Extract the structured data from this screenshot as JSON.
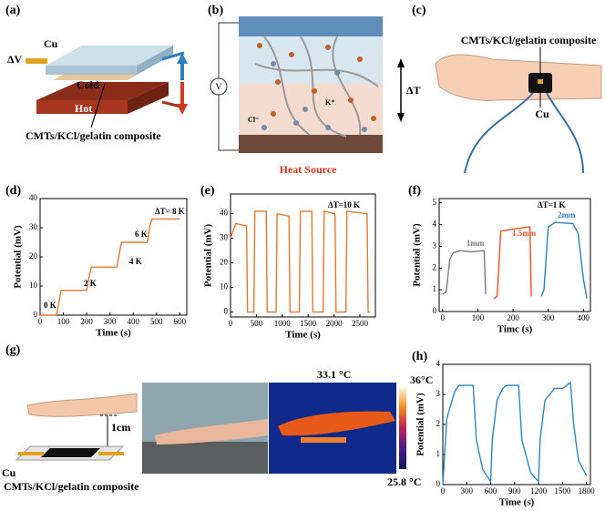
{
  "panels": {
    "labels": [
      "(a)",
      "(b)",
      "(c)",
      "(d)",
      "(e)",
      "(f)",
      "(g)",
      "(h)"
    ],
    "a": {
      "cu": "Cu",
      "dv": "ΔV",
      "cold": "Cold",
      "hot": "Hot",
      "composite": "CMTs/KCl/gelatin composite"
    },
    "b": {
      "heat_source": "Heat Source",
      "dt": "ΔT",
      "k": "K⁺",
      "cl": "Cl⁻"
    },
    "c": {
      "composite": "CMTs/KCl/gelatin composite",
      "cu": "Cu"
    },
    "g": {
      "distance": "1cm",
      "cu": "Cu",
      "composite": "CMTs/KCl/gelatin composite",
      "temp_hand": "33.1 °C",
      "temp_max": "36°C",
      "temp_min": "25.8 °C"
    }
  },
  "chart_data": [
    {
      "type": "line",
      "xlabel": "Time (s)",
      "ylabel": "Potential (mV)",
      "xlim": [
        0,
        630
      ],
      "xticks": [
        0,
        100,
        200,
        300,
        400,
        500,
        600
      ],
      "ylim": [
        0,
        40
      ],
      "yticks": [
        0,
        10,
        20,
        30,
        40
      ],
      "annotations": [
        "0 K",
        "2 K",
        "4 K",
        "6 K",
        "ΔT= 8 K"
      ],
      "series": [
        {
          "color": "#e8772e",
          "x": [
            0,
            70,
            80,
            90,
            200,
            210,
            220,
            330,
            340,
            350,
            460,
            470,
            480,
            600
          ],
          "values": [
            0,
            0,
            4,
            8.5,
            8.5,
            13,
            16.5,
            16.5,
            21,
            25,
            25,
            30,
            33,
            33
          ]
        }
      ]
    },
    {
      "type": "line",
      "xlabel": "Time (s)",
      "ylabel": "Potential (mV)",
      "xlim": [
        0,
        2800
      ],
      "xticks": [
        0,
        500,
        1000,
        1500,
        2000,
        2500
      ],
      "ylim": [
        -2,
        48
      ],
      "yticks": [
        0,
        10,
        20,
        30,
        40
      ],
      "annotations": [
        "ΔT=10 K"
      ],
      "series": [
        {
          "color": "#e8772e",
          "x": [
            0,
            100,
            310,
            330,
            450,
            470,
            690,
            710,
            880,
            900,
            1130,
            1150,
            1330,
            1350,
            1570,
            1590,
            1790,
            1810,
            2020,
            2040,
            2230,
            2250,
            2640,
            2660,
            2700
          ],
          "values": [
            30,
            36,
            35,
            0,
            0,
            41,
            41,
            0,
            0,
            40,
            39,
            0,
            0,
            41,
            41,
            0,
            0,
            41,
            40,
            0,
            0,
            41,
            40,
            0,
            0
          ]
        }
      ]
    },
    {
      "type": "line",
      "xlabel": "Timc (s)",
      "ylabel": "Potential (mV)",
      "xlim": [
        -10,
        420
      ],
      "xticks": [
        0,
        100,
        200,
        300,
        400
      ],
      "ylim": [
        0,
        5.2
      ],
      "yticks": [
        0,
        1,
        2,
        3,
        4,
        5
      ],
      "annotations": [
        "ΔT=1 K"
      ],
      "series": [
        {
          "name": "1mm",
          "color": "#7a7a7a",
          "x": [
            0,
            10,
            20,
            30,
            50,
            80,
            118,
            122
          ],
          "values": [
            0.8,
            0.9,
            2.4,
            2.7,
            2.8,
            2.75,
            2.8,
            0.8
          ]
        },
        {
          "name": "1.5mm",
          "color": "#f04e23",
          "x": [
            145,
            155,
            165,
            200,
            248,
            252
          ],
          "values": [
            0.6,
            0.7,
            3.7,
            3.8,
            3.9,
            0.7
          ]
        },
        {
          "name": "2mm",
          "color": "#2f7fbf",
          "x": [
            280,
            288,
            300,
            320,
            370,
            385,
            400,
            410
          ],
          "values": [
            0.7,
            1.0,
            3.9,
            4.1,
            4.05,
            3.6,
            1.5,
            0.6
          ]
        }
      ]
    },
    {
      "type": "line",
      "xlabel": "Time (s)",
      "ylabel": "Potential (mV)",
      "xlim": [
        0,
        1850
      ],
      "xticks": [
        0,
        300,
        600,
        900,
        1200,
        1500,
        1800
      ],
      "ylim": [
        0,
        4
      ],
      "yticks": [
        0,
        1,
        2,
        3,
        4
      ],
      "series": [
        {
          "color": "#2f86c4",
          "x": [
            0,
            50,
            150,
            200,
            380,
            420,
            500,
            600,
            620,
            680,
            750,
            800,
            950,
            990,
            1100,
            1200,
            1220,
            1280,
            1400,
            1500,
            1600,
            1640,
            1700,
            1800
          ],
          "values": [
            0,
            2.2,
            3.1,
            3.3,
            3.3,
            1.5,
            0.5,
            0.1,
            1.5,
            2.8,
            3.2,
            3.3,
            3.3,
            1.5,
            0.4,
            0.1,
            1.5,
            2.8,
            3.2,
            3.2,
            3.4,
            2,
            0.8,
            0.3
          ]
        }
      ]
    }
  ]
}
